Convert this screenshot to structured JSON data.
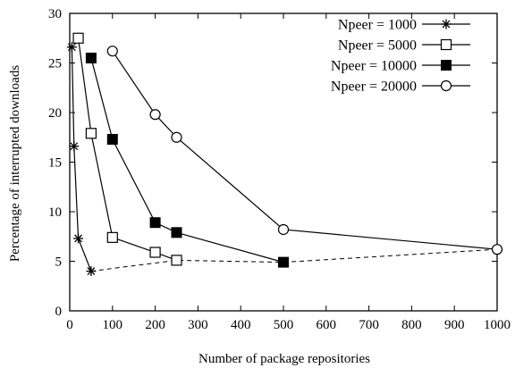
{
  "chart_data": {
    "type": "line",
    "title": "",
    "xlabel": "Number of package repositories",
    "ylabel": "Percentage of interrupted downloads",
    "xlim": [
      0,
      1000
    ],
    "ylim": [
      0,
      30
    ],
    "xticks": [
      0,
      100,
      200,
      300,
      400,
      500,
      600,
      700,
      800,
      900,
      1000
    ],
    "yticks": [
      0,
      5,
      10,
      15,
      20,
      25,
      30
    ],
    "grid": false,
    "legend_position": "top-right",
    "series": [
      {
        "name": "Npeer = 1000",
        "marker": "star",
        "x": [
          5,
          10,
          20,
          50
        ],
        "y": [
          26.6,
          16.6,
          7.3,
          4.0
        ]
      },
      {
        "name": "Npeer = 5000",
        "marker": "open-square",
        "x": [
          20,
          50,
          100,
          200,
          250
        ],
        "y": [
          27.5,
          17.9,
          7.4,
          5.9,
          5.1
        ]
      },
      {
        "name": "Npeer = 10000",
        "marker": "filled-square",
        "x": [
          50,
          100,
          200,
          250,
          500
        ],
        "y": [
          25.5,
          17.3,
          8.9,
          7.9,
          4.9
        ]
      },
      {
        "name": "Npeer = 20000",
        "marker": "open-circle",
        "x": [
          100,
          200,
          250,
          500,
          1000
        ],
        "y": [
          26.2,
          19.8,
          17.5,
          8.2,
          6.2
        ]
      }
    ],
    "dashed_line": {
      "x": [
        50,
        250,
        500,
        1000
      ],
      "y": [
        4.0,
        5.1,
        4.9,
        6.2
      ]
    }
  }
}
